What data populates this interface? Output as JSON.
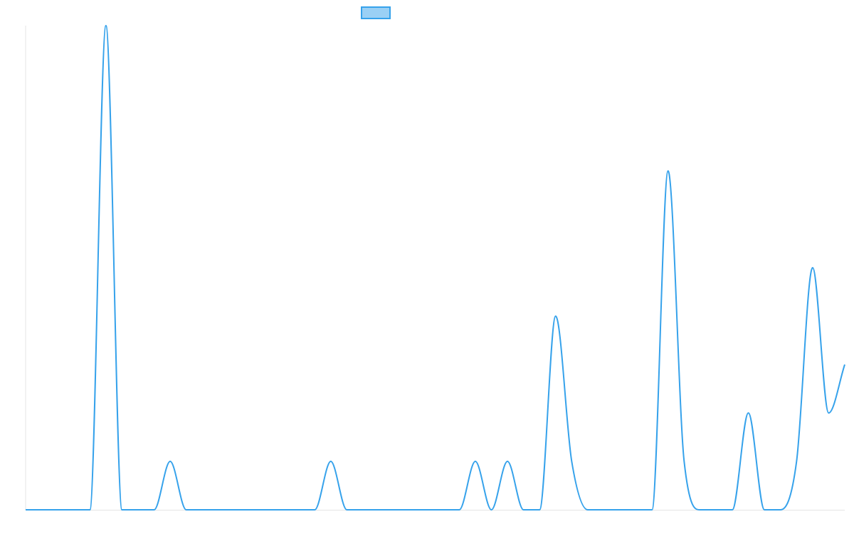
{
  "chart_data": {
    "type": "line",
    "interpolation": "monotone",
    "legend": "top",
    "ylim": [
      0,
      10
    ],
    "series": [
      {
        "color": "#36a2eb",
        "fill": "#9ad0f5",
        "values": [
          0,
          0,
          0,
          0,
          0,
          10,
          0,
          0,
          0,
          1,
          0,
          0,
          0,
          0,
          0,
          0,
          0,
          0,
          0,
          1,
          0,
          0,
          0,
          0,
          0,
          0,
          0,
          0,
          1,
          0,
          1,
          0,
          0,
          4,
          1,
          0,
          0,
          0,
          0,
          0,
          7,
          1,
          0,
          0,
          0,
          2,
          0,
          0,
          1,
          5,
          2,
          3
        ]
      }
    ]
  }
}
